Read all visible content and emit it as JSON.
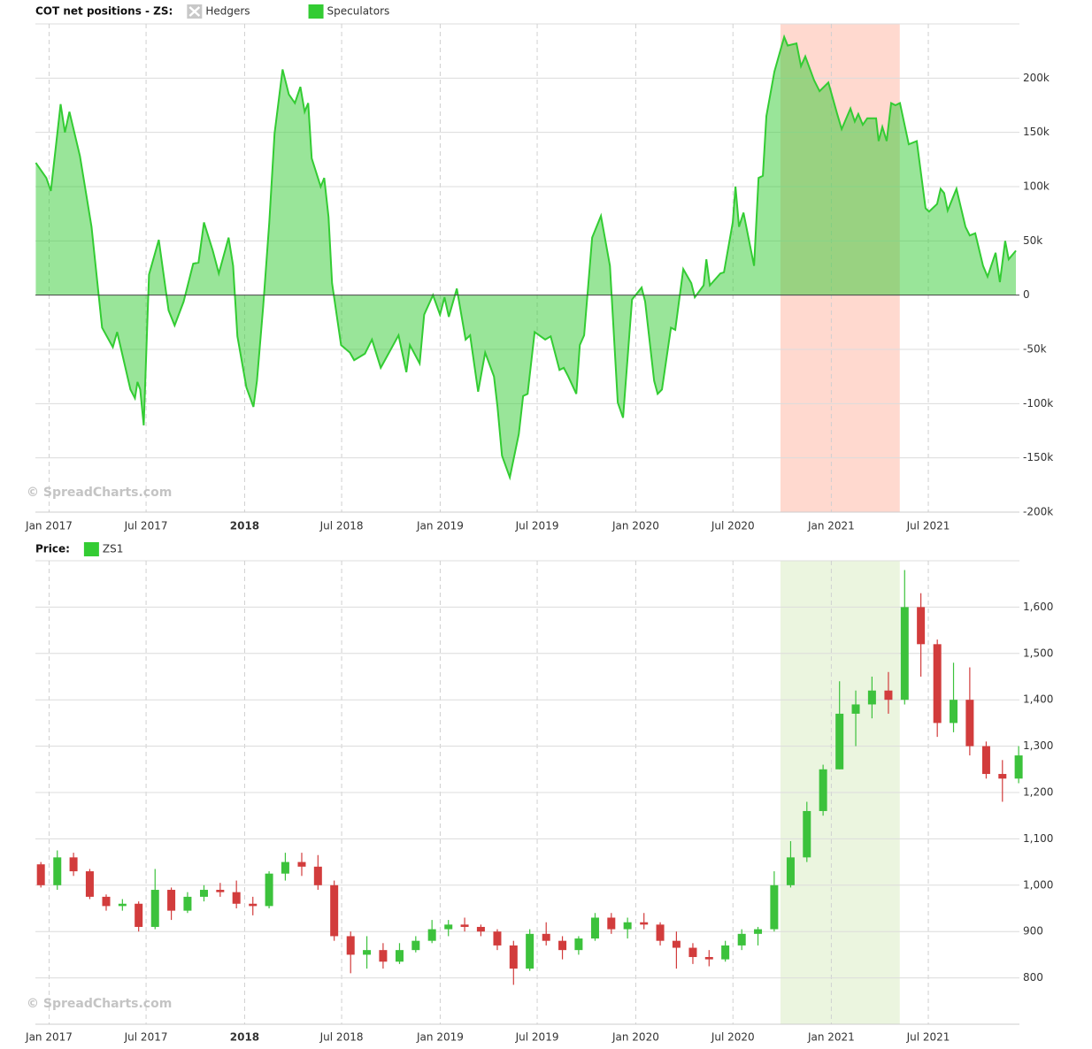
{
  "chart_data": [
    {
      "type": "area",
      "title": "COT net positions - ZS:",
      "watermark": "© SpreadCharts.com",
      "grid": true,
      "hidden_series": [
        {
          "name": "Hedgers",
          "color": "#c8c8c8"
        }
      ],
      "highlight": {
        "from": 2020.74,
        "to": 2021.35,
        "color": "#ffd9cf"
      },
      "xlim": [
        2016.93,
        2021.962
      ],
      "xticks": [
        {
          "value": 2017,
          "label": "Jan 2017"
        },
        {
          "value": 2017.496,
          "label": "Jul 2017"
        },
        2018,
        {
          "value": 2018.496,
          "label": "Jul 2018"
        },
        {
          "value": 2019,
          "label": "Jan 2019"
        },
        {
          "value": 2019.496,
          "label": "Jul 2019"
        },
        {
          "value": 2020,
          "label": "Jan 2020"
        },
        {
          "value": 2020.497,
          "label": "Jul 2020"
        },
        {
          "value": 2021,
          "label": "Jan 2021"
        },
        {
          "value": 2021.496,
          "label": "Jul 2021"
        }
      ],
      "ylim": [
        -200000,
        250000
      ],
      "yticks": [
        {
          "value": -200000,
          "label": "-200k"
        },
        {
          "value": -150000,
          "label": "-150k"
        },
        {
          "value": -100000,
          "label": "-100k"
        },
        {
          "value": -50000,
          "label": "-50k"
        },
        0,
        {
          "value": 50000,
          "label": "50k"
        },
        {
          "value": 100000,
          "label": "100k"
        },
        {
          "value": 150000,
          "label": "150k"
        },
        {
          "value": 200000,
          "label": "200k"
        }
      ],
      "x": [
        2016.932,
        2016.986,
        2017.009,
        2017.059,
        2017.081,
        2017.104,
        2017.158,
        2017.217,
        2017.271,
        2017.326,
        2017.348,
        2017.416,
        2017.439,
        2017.452,
        2017.466,
        2017.484,
        2017.511,
        2017.561,
        2017.611,
        2017.642,
        2017.688,
        2017.737,
        2017.764,
        2017.792,
        2017.837,
        2017.868,
        2017.918,
        2017.941,
        2017.963,
        2018.009,
        2018.045,
        2018.063,
        2018.095,
        2018.126,
        2018.153,
        2018.194,
        2018.226,
        2018.257,
        2018.285,
        2018.307,
        2018.325,
        2018.343,
        2018.389,
        2018.407,
        2018.429,
        2018.447,
        2018.493,
        2018.538,
        2018.56,
        2018.615,
        2018.651,
        2018.696,
        2018.787,
        2018.827,
        2018.845,
        2018.895,
        2018.918,
        2018.963,
        2018.999,
        2019.022,
        2019.044,
        2019.085,
        2019.13,
        2019.153,
        2019.194,
        2019.23,
        2019.275,
        2019.293,
        2019.316,
        2019.356,
        2019.402,
        2019.424,
        2019.447,
        2019.483,
        2019.537,
        2019.565,
        2019.61,
        2019.632,
        2019.655,
        2019.696,
        2019.714,
        2019.736,
        2019.777,
        2019.822,
        2019.868,
        2019.908,
        2019.935,
        2019.981,
        2020.03,
        2020.048,
        2020.094,
        2020.112,
        2020.134,
        2020.18,
        2020.202,
        2020.243,
        2020.284,
        2020.302,
        2020.347,
        2020.361,
        2020.379,
        2020.433,
        2020.451,
        2020.496,
        2020.51,
        2020.528,
        2020.551,
        2020.605,
        2020.628,
        2020.65,
        2020.668,
        2020.709,
        2020.759,
        2020.777,
        2020.822,
        2020.845,
        2020.867,
        2020.912,
        2020.94,
        2020.985,
        2021.03,
        2021.053,
        2021.098,
        2021.12,
        2021.138,
        2021.161,
        2021.184,
        2021.229,
        2021.242,
        2021.261,
        2021.283,
        2021.306,
        2021.328,
        2021.351,
        2021.396,
        2021.437,
        2021.482,
        2021.5,
        2021.541,
        2021.559,
        2021.577,
        2021.595,
        2021.64,
        2021.686,
        2021.708,
        2021.736,
        2021.776,
        2021.799,
        2021.84,
        2021.862,
        2021.889,
        2021.907,
        2021.944
      ],
      "series": [
        {
          "name": "Speculators",
          "color": "#33cc33",
          "values": [
            122000,
            108000,
            96000,
            176000,
            150000,
            169000,
            128000,
            63000,
            -30000,
            -48000,
            -34000,
            -87000,
            -95000,
            -80000,
            -87000,
            -120000,
            19000,
            51000,
            -14000,
            -28000,
            -6000,
            29000,
            30000,
            67000,
            41000,
            20000,
            53000,
            27000,
            -38000,
            -85000,
            -103000,
            -79000,
            -10000,
            67000,
            149000,
            208000,
            185000,
            177000,
            192000,
            169000,
            177000,
            126000,
            100000,
            108000,
            72000,
            11000,
            -46000,
            -53000,
            -60000,
            -54000,
            -41000,
            -67000,
            -37000,
            -71000,
            -46000,
            -63000,
            -18000,
            0,
            -18000,
            -2000,
            -20000,
            6000,
            -41000,
            -37000,
            -89000,
            -53000,
            -75000,
            -103000,
            -148000,
            -168000,
            -128000,
            -93000,
            -91000,
            -34000,
            -41000,
            -38000,
            -69000,
            -67000,
            -75000,
            -91000,
            -46000,
            -37000,
            53000,
            73000,
            27000,
            -99000,
            -113000,
            -4000,
            7000,
            -6000,
            -79000,
            -91000,
            -87000,
            -30000,
            -32000,
            24000,
            11000,
            -2000,
            9000,
            33000,
            9000,
            20000,
            21000,
            67000,
            100000,
            63000,
            76000,
            27000,
            108000,
            110000,
            165000,
            206000,
            238000,
            230000,
            232000,
            211000,
            220000,
            198000,
            188000,
            196000,
            167000,
            153000,
            172000,
            160000,
            167000,
            157000,
            163000,
            163000,
            142000,
            155000,
            142000,
            177000,
            175000,
            177000,
            139000,
            142000,
            80000,
            77000,
            84000,
            98000,
            94000,
            78000,
            98000,
            63000,
            55000,
            57000,
            27000,
            17000,
            39000,
            12000,
            50000,
            33000,
            41000
          ]
        }
      ]
    },
    {
      "type": "candlestick",
      "title": "Price:",
      "watermark": "© SpreadCharts.com",
      "grid": true,
      "highlight": {
        "from": 2020.74,
        "to": 2021.35,
        "color": "#ebf5df"
      },
      "xlim": [
        2016.93,
        2021.962
      ],
      "xticks": [
        {
          "value": 2017,
          "label": "Jan 2017"
        },
        {
          "value": 2017.496,
          "label": "Jul 2017"
        },
        2018,
        {
          "value": 2018.496,
          "label": "Jul 2018"
        },
        {
          "value": 2019,
          "label": "Jan 2019"
        },
        {
          "value": 2019.496,
          "label": "Jul 2019"
        },
        {
          "value": 2020,
          "label": "Jan 2020"
        },
        {
          "value": 2020.497,
          "label": "Jul 2020"
        },
        {
          "value": 2021,
          "label": "Jan 2021"
        },
        {
          "value": 2021.496,
          "label": "Jul 2021"
        }
      ],
      "ylim": [
        700,
        1700
      ],
      "yticks": [
        800,
        900,
        {
          "value": 1000,
          "label": "1,000"
        },
        {
          "value": 1100,
          "label": "1,100"
        },
        {
          "value": 1200,
          "label": "1,200"
        },
        {
          "value": 1300,
          "label": "1,300"
        },
        {
          "value": 1400,
          "label": "1,400"
        },
        {
          "value": 1500,
          "label": "1,500"
        },
        {
          "value": 1600,
          "label": "1,600"
        }
      ],
      "x": [
        2016.958,
        2017.042,
        2017.125,
        2017.208,
        2017.292,
        2017.375,
        2017.458,
        2017.542,
        2017.625,
        2017.708,
        2017.792,
        2017.875,
        2017.958,
        2018.042,
        2018.125,
        2018.208,
        2018.292,
        2018.375,
        2018.458,
        2018.542,
        2018.625,
        2018.708,
        2018.792,
        2018.875,
        2018.958,
        2019.042,
        2019.125,
        2019.208,
        2019.292,
        2019.375,
        2019.458,
        2019.542,
        2019.625,
        2019.708,
        2019.792,
        2019.875,
        2019.958,
        2020.042,
        2020.125,
        2020.208,
        2020.292,
        2020.375,
        2020.458,
        2020.542,
        2020.625,
        2020.708,
        2020.792,
        2020.875,
        2020.958,
        2021.042,
        2021.125,
        2021.208,
        2021.292,
        2021.375,
        2021.458,
        2021.542,
        2021.625,
        2021.708,
        2021.792,
        2021.875,
        2021.958
      ],
      "series": [
        {
          "name": "ZS1",
          "color": "#33cc33",
          "up_color": "#3cc23c",
          "down_color": "#d23c3c",
          "open": [
            1045,
            1000,
            1060,
            1030,
            975,
            955,
            960,
            910,
            990,
            945,
            975,
            990,
            985,
            960,
            955,
            1025,
            1050,
            1040,
            1000,
            890,
            850,
            860,
            835,
            860,
            880,
            905,
            915,
            910,
            900,
            870,
            820,
            895,
            880,
            860,
            885,
            930,
            905,
            920,
            915,
            880,
            865,
            845,
            840,
            870,
            895,
            905,
            1000,
            1060,
            1160,
            1250,
            1370,
            1390,
            1420,
            1400,
            1600,
            1520,
            1350,
            1400,
            1300,
            1240,
            1230
          ],
          "high": [
            1050,
            1075,
            1070,
            1035,
            980,
            970,
            965,
            1035,
            995,
            985,
            1000,
            1005,
            1010,
            975,
            1030,
            1070,
            1070,
            1065,
            1010,
            900,
            890,
            875,
            875,
            890,
            925,
            925,
            930,
            915,
            905,
            880,
            905,
            920,
            890,
            890,
            940,
            940,
            930,
            940,
            920,
            900,
            875,
            860,
            880,
            905,
            910,
            1030,
            1095,
            1180,
            1260,
            1440,
            1420,
            1450,
            1460,
            1680,
            1630,
            1530,
            1480,
            1470,
            1310,
            1270,
            1300
          ],
          "low": [
            995,
            990,
            1020,
            970,
            945,
            945,
            900,
            905,
            925,
            940,
            965,
            975,
            950,
            935,
            950,
            1010,
            1020,
            990,
            880,
            810,
            820,
            820,
            830,
            855,
            875,
            890,
            900,
            890,
            860,
            785,
            815,
            870,
            840,
            850,
            880,
            895,
            885,
            905,
            870,
            820,
            830,
            825,
            835,
            860,
            870,
            900,
            995,
            1050,
            1150,
            1250,
            1300,
            1360,
            1370,
            1390,
            1450,
            1320,
            1330,
            1280,
            1230,
            1180,
            1220
          ],
          "close": [
            1000,
            1060,
            1030,
            975,
            955,
            960,
            910,
            990,
            945,
            975,
            990,
            985,
            960,
            955,
            1025,
            1050,
            1040,
            1000,
            890,
            850,
            860,
            835,
            860,
            880,
            905,
            915,
            910,
            900,
            870,
            820,
            895,
            880,
            860,
            885,
            930,
            905,
            920,
            915,
            880,
            865,
            845,
            840,
            870,
            895,
            905,
            1000,
            1060,
            1160,
            1250,
            1370,
            1390,
            1420,
            1400,
            1600,
            1520,
            1350,
            1400,
            1300,
            1240,
            1230,
            1280
          ]
        }
      ]
    }
  ]
}
